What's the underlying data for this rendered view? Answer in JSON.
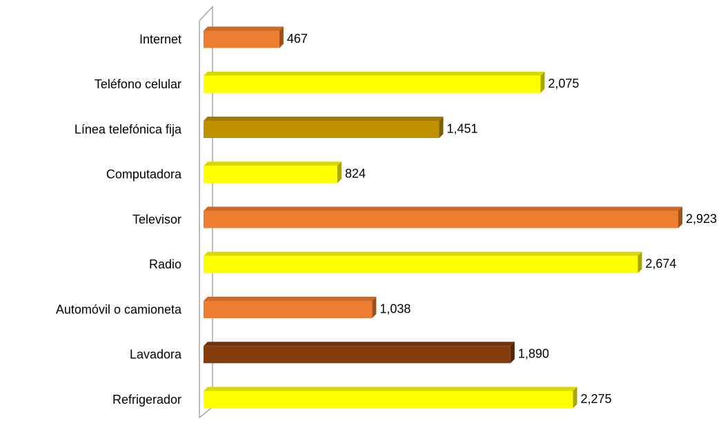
{
  "chart_data": {
    "type": "bar",
    "orientation": "horizontal",
    "categories": [
      "Internet",
      "Teléfono celular",
      "Línea telefónica fija",
      "Computadora",
      "Televisor",
      "Radio",
      "Automóvil o camioneta",
      "Lavadora",
      "Refrigerador"
    ],
    "values": [
      467,
      2075,
      1451,
      824,
      2923,
      2674,
      1038,
      1890,
      2275
    ],
    "value_labels": [
      "467",
      "2,075",
      "1,451",
      "824",
      "2,923",
      "2,674",
      "1,038",
      "1,890",
      "2,275"
    ],
    "colors": [
      "#ED7D31",
      "#FFFF00",
      "#BF9000",
      "#FFFF00",
      "#ED7D31",
      "#FFFF00",
      "#ED7D31",
      "#843C0C",
      "#FFFF00"
    ]
  }
}
